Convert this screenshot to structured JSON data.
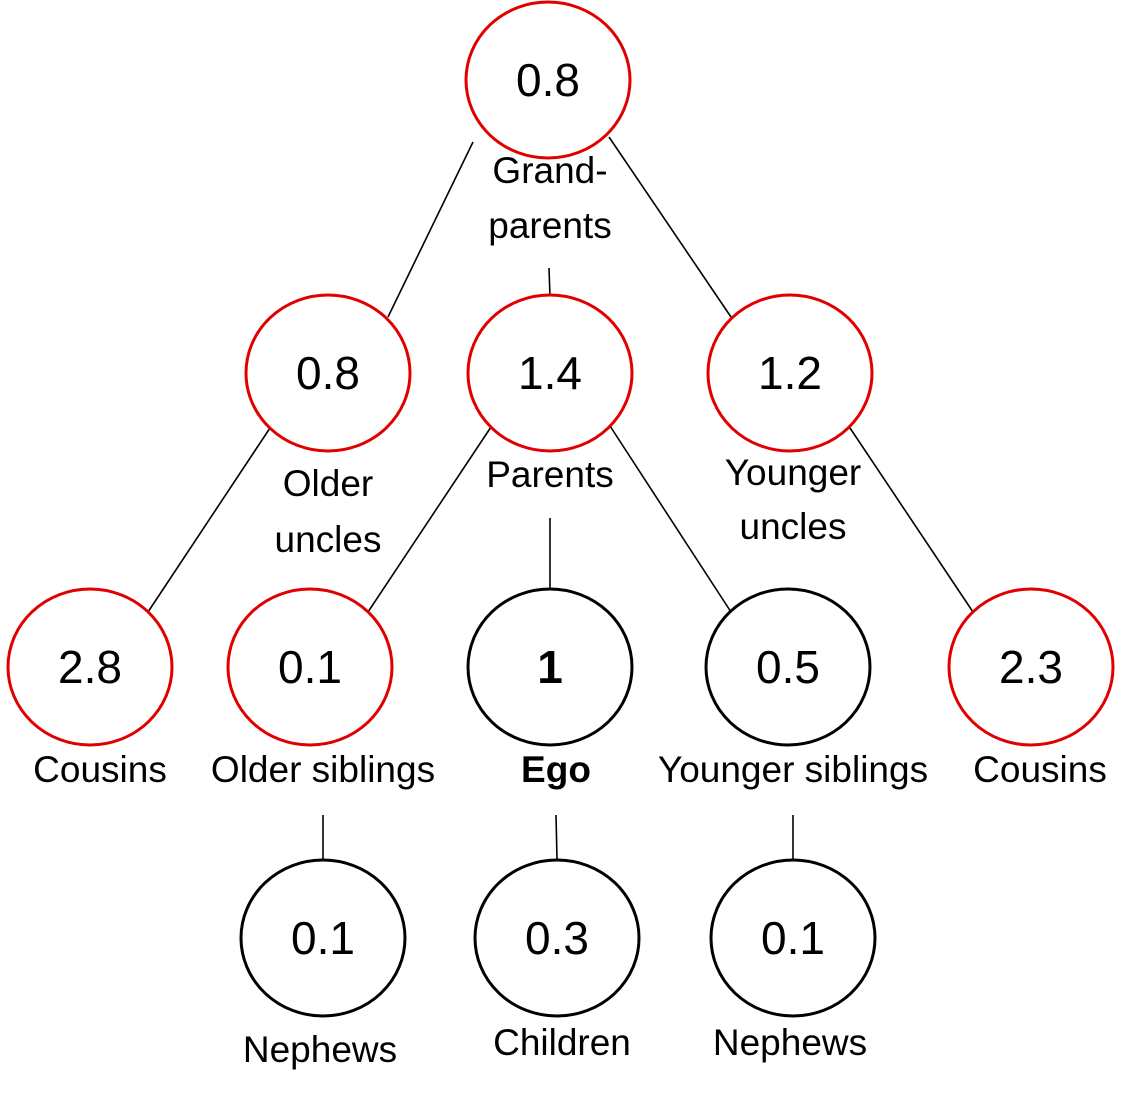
{
  "diagram": {
    "colors": {
      "highlight": "#e00000",
      "normal": "#000000"
    },
    "nodes": {
      "grandparents": {
        "value": "0.8",
        "label": [
          "Grand-",
          "parents"
        ],
        "highlight": true
      },
      "older_uncles": {
        "value": "0.8",
        "label": [
          "Older",
          "uncles"
        ],
        "highlight": true
      },
      "parents": {
        "value": "1.4",
        "label": [
          "Parents"
        ],
        "highlight": true
      },
      "younger_uncles": {
        "value": "1.2",
        "label": [
          "Younger",
          "uncles"
        ],
        "highlight": true
      },
      "cousins_left": {
        "value": "2.8",
        "label": [
          "Cousins"
        ],
        "highlight": true
      },
      "older_siblings": {
        "value": "0.1",
        "label": [
          "Older siblings"
        ],
        "highlight": true
      },
      "ego": {
        "value": "1",
        "label": [
          "Ego"
        ],
        "highlight": false,
        "bold": true
      },
      "younger_siblings": {
        "value": "0.5",
        "label": [
          "Younger siblings"
        ],
        "highlight": false
      },
      "cousins_right": {
        "value": "2.3",
        "label": [
          "Cousins"
        ],
        "highlight": true
      },
      "nephews_left": {
        "value": "0.1",
        "label": [
          "Nephews"
        ],
        "highlight": false
      },
      "children": {
        "value": "0.3",
        "label": [
          "Children"
        ],
        "highlight": false
      },
      "nephews_right": {
        "value": "0.1",
        "label": [
          "Nephews"
        ],
        "highlight": false
      }
    }
  }
}
